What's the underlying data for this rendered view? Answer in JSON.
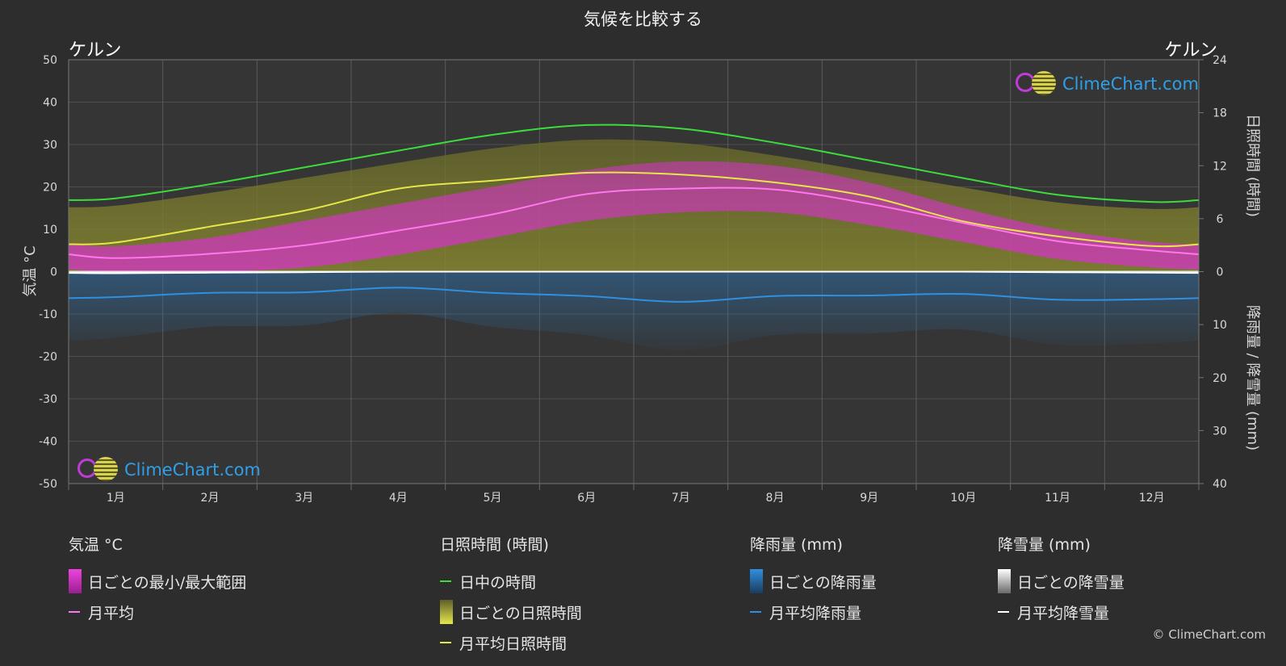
{
  "title": "気候を比較する",
  "location_left": "ケルン",
  "location_right": "ケルン",
  "axis_left_label": "気温 °C",
  "axis_right_top_label": "日照時間 (時間)",
  "axis_right_bottom_label": "降雨量 / 降雪量 (mm)",
  "watermark": "ClimeChart.com",
  "copyright": "© ClimeChart.com",
  "legend": {
    "temp": {
      "header": "気温 °C",
      "range": "日ごとの最小/最大範囲",
      "avg": "月平均"
    },
    "sun": {
      "header": "日照時間 (時間)",
      "daylight": "日中の時間",
      "daily": "日ごとの日照時間",
      "avg": "月平均日照時間"
    },
    "rain": {
      "header": "降雨量 (mm)",
      "daily": "日ごとの降雨量",
      "avg": "月平均降雨量"
    },
    "snow": {
      "header": "降雪量 (mm)",
      "daily": "日ごとの降雪量",
      "avg": "月平均降雪量"
    }
  },
  "colors": {
    "background": "#2d2d2d",
    "daylight": "#3ddc3d",
    "sunshine": "#e6e64a",
    "temp_avg": "#ff77ee",
    "temp_range": "#d633c8",
    "rain": "#2f8fe0",
    "snow": "#ffffff"
  },
  "chart_data": {
    "type": "line",
    "months": [
      "1月",
      "2月",
      "3月",
      "4月",
      "5月",
      "6月",
      "7月",
      "8月",
      "9月",
      "10月",
      "11月",
      "12月"
    ],
    "temp_axis": {
      "ticks": [
        50,
        40,
        30,
        20,
        10,
        0,
        -10,
        -20,
        -30,
        -40,
        -50
      ],
      "range": [
        -50,
        50
      ]
    },
    "sun_axis": {
      "ticks": [
        24,
        18,
        12,
        6,
        0
      ],
      "range": [
        0,
        24
      ]
    },
    "precip_axis": {
      "ticks": [
        0,
        10,
        20,
        30,
        40
      ],
      "range": [
        0,
        40
      ]
    },
    "series": [
      {
        "name": "日中の時間",
        "unit": "hours",
        "values": [
          8.3,
          9.9,
          11.8,
          13.7,
          15.5,
          16.6,
          16.2,
          14.6,
          12.6,
          10.6,
          8.7,
          7.9
        ]
      },
      {
        "name": "月平均日照時間",
        "unit": "hours",
        "values": [
          3.3,
          5.1,
          6.9,
          9.4,
          10.3,
          11.2,
          11.0,
          10.1,
          8.5,
          5.7,
          4.0,
          2.9
        ]
      },
      {
        "name": "月平均",
        "unit": "°C",
        "values": [
          3.2,
          4.2,
          6.2,
          9.7,
          13.5,
          18.3,
          19.6,
          19.4,
          16.0,
          11.5,
          7.2,
          5.0
        ]
      },
      {
        "name": "月平均降雨量",
        "unit": "mm",
        "values": [
          4.8,
          4.0,
          3.9,
          3.0,
          4.0,
          4.6,
          5.7,
          4.6,
          4.5,
          4.2,
          5.3,
          5.2
        ]
      },
      {
        "name": "月平均降雪量",
        "unit": "mm",
        "values": [
          0.3,
          0.2,
          0.1,
          0,
          0,
          0,
          0,
          0,
          0,
          0,
          0.1,
          0.2
        ]
      }
    ],
    "daily_temp_range_monthly": {
      "min": [
        0,
        0,
        1,
        4,
        8,
        12,
        14,
        14,
        11,
        7,
        3,
        1
      ],
      "max": [
        6,
        8,
        12,
        16,
        20,
        24,
        26,
        25,
        21,
        15,
        10,
        7
      ]
    },
    "grid": true
  }
}
